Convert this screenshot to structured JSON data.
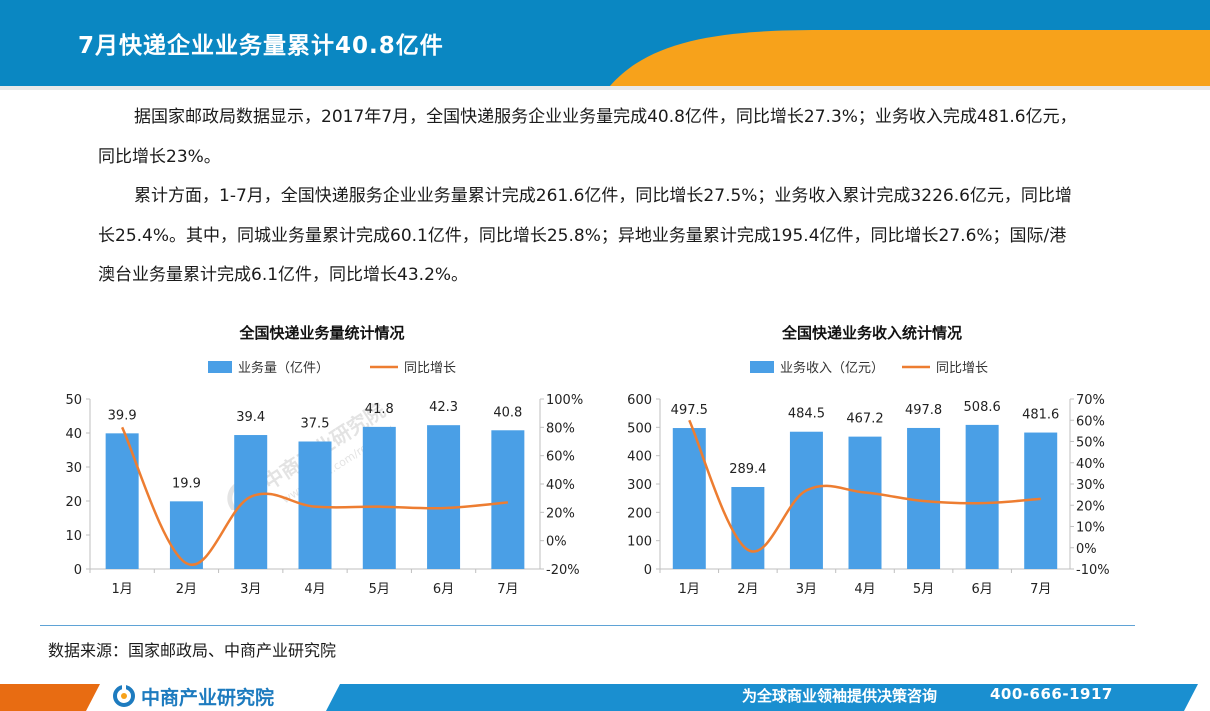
{
  "header": {
    "title": "7月快递企业业务量累计40.8亿件"
  },
  "body": {
    "paragraphs": [
      "据国家邮政局数据显示，2017年7月，全国快递服务企业业务量完成40.8亿件，同比增长27.3%；业务收入完成481.6亿元，同比增长23%。",
      "累计方面，1-7月，全国快递服务企业业务量累计完成261.6亿件，同比增长27.5%；业务收入累计完成3226.6亿元，同比增长25.4%。其中，同城业务量累计完成60.1亿件，同比增长25.8%；异地业务量累计完成195.4亿件，同比增长27.6%；国际/港澳台业务量累计完成6.1亿件，同比增长43.2%。"
    ]
  },
  "chart_data": [
    {
      "type": "bar",
      "title": "全国快递业务量统计情况",
      "categories": [
        "1月",
        "2月",
        "3月",
        "4月",
        "5月",
        "6月",
        "7月"
      ],
      "series": [
        {
          "name": "业务量（亿件）",
          "kind": "bar",
          "axis": "left",
          "color": "#4a9fe6",
          "values": [
            39.9,
            19.9,
            39.4,
            37.5,
            41.8,
            42.3,
            40.8
          ],
          "labels": [
            "39.9",
            "19.9",
            "39.4",
            "37.5",
            "41.8",
            "42.3",
            "40.8"
          ]
        },
        {
          "name": "同比增长",
          "kind": "line",
          "axis": "right",
          "color": "#ed7d31",
          "values": [
            80,
            -16,
            31,
            24,
            24,
            23,
            27
          ]
        }
      ],
      "y_left": {
        "min": 0,
        "max": 50,
        "step": 10,
        "tick_labels": [
          "0",
          "10",
          "20",
          "30",
          "40",
          "50"
        ]
      },
      "y_right": {
        "min": -20,
        "max": 100,
        "step": 20,
        "tick_labels": [
          "-20%",
          "0%",
          "20%",
          "40%",
          "60%",
          "80%",
          "100%"
        ]
      },
      "legend": "top"
    },
    {
      "type": "bar",
      "title": "全国快递业务收入统计情况",
      "categories": [
        "1月",
        "2月",
        "3月",
        "4月",
        "5月",
        "6月",
        "7月"
      ],
      "series": [
        {
          "name": "业务收入（亿元）",
          "kind": "bar",
          "axis": "left",
          "color": "#4a9fe6",
          "values": [
            497.5,
            289.4,
            484.5,
            467.2,
            497.8,
            508.6,
            481.6
          ],
          "labels": [
            "497.5",
            "289.4",
            "484.5",
            "467.2",
            "497.8",
            "508.6",
            "481.6"
          ]
        },
        {
          "name": "同比增长",
          "kind": "line",
          "axis": "right",
          "color": "#ed7d31",
          "values": [
            60,
            -1,
            27,
            26,
            22,
            21,
            23
          ]
        }
      ],
      "y_left": {
        "min": 0,
        "max": 600,
        "step": 100,
        "tick_labels": [
          "0",
          "100",
          "200",
          "300",
          "400",
          "500",
          "600"
        ]
      },
      "y_right": {
        "min": -10,
        "max": 70,
        "step": 10,
        "tick_labels": [
          "-10%",
          "0%",
          "10%",
          "20%",
          "30%",
          "40%",
          "50%",
          "60%",
          "70%"
        ]
      },
      "legend": "top"
    }
  ],
  "source": {
    "text": "数据来源：国家邮政局、中商产业研究院"
  },
  "footer": {
    "logo_text": "中商产业研究院",
    "slogan": "为全球商业领袖提供决策咨询",
    "phone": "400-666-1917"
  },
  "watermark": {
    "logo_text": "中商产业研究院",
    "url": "www.askci.com/reports/"
  },
  "colors": {
    "header_blue": "#0a87c2",
    "accent_orange": "#f7a21b",
    "bar_blue": "#4a9fe6",
    "line_orange": "#ed7d31",
    "footer_orange": "#e86c12",
    "footer_blue": "#1a8fd0"
  }
}
